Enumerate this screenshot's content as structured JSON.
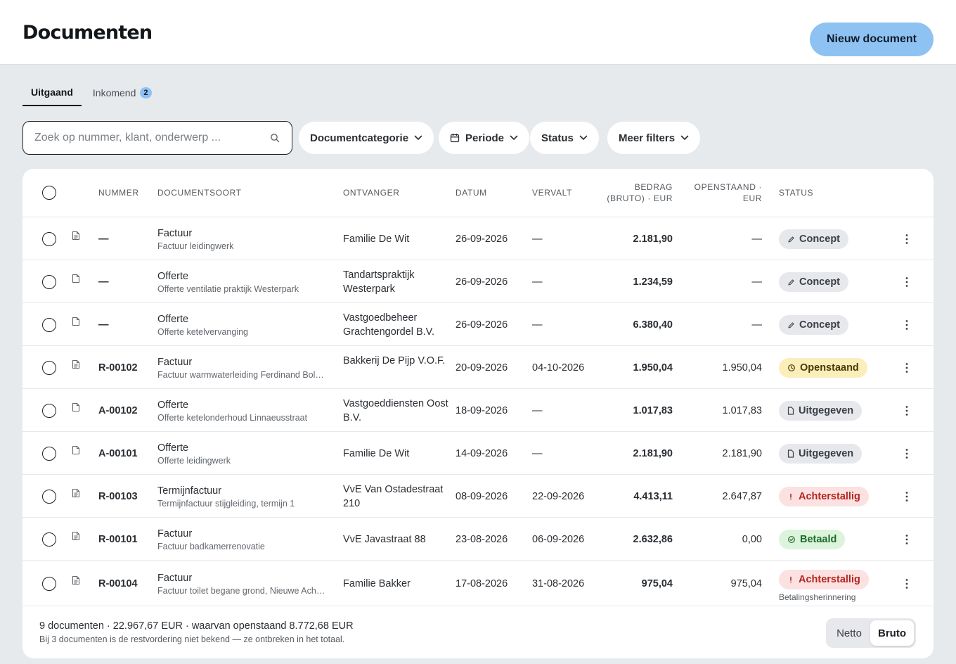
{
  "header": {
    "title": "Documenten",
    "new_button": "Nieuw document"
  },
  "tabs": [
    {
      "label": "Uitgaand",
      "active": true
    },
    {
      "label": "Inkomend",
      "badge": "2",
      "active": false
    }
  ],
  "search": {
    "placeholder": "Zoek op nummer, klant, onderwerp ..."
  },
  "filters": [
    "Documentcategorie",
    "Periode",
    "Status",
    "Meer filters"
  ],
  "columns": {
    "number": "Nummer",
    "doctype": "Documentsoort",
    "recipient": "Ontvanger",
    "date": "Datum",
    "due": "Vervalt",
    "amount_line1": "Bedrag",
    "amount_line2": "(bruto) · EUR",
    "open_line1": "Openstaand ·",
    "open_line2": "EUR",
    "status": "Status"
  },
  "rows": [
    {
      "number": "—",
      "type": "Factuur",
      "subtitle": "Factuur leidingwerk",
      "recipient": "Familie De Wit",
      "date": "26-09-2026",
      "due": "—",
      "amount": "2.181,90",
      "open": "—",
      "status": "Concept",
      "status_kind": "concept",
      "status_icon": "pencil-icon",
      "doc_icon": "invoice-icon"
    },
    {
      "number": "—",
      "type": "Offerte",
      "subtitle": "Offerte ventilatie praktijk Westerpark",
      "recipient": "Tandartspraktijk Westerpark",
      "date": "26-09-2026",
      "due": "—",
      "amount": "1.234,59",
      "open": "—",
      "status": "Concept",
      "status_kind": "concept",
      "status_icon": "pencil-icon",
      "doc_icon": "quote-icon"
    },
    {
      "number": "—",
      "type": "Offerte",
      "subtitle": "Offerte ketelvervanging",
      "recipient": "Vastgoedbeheer Grachtengordel B.V.",
      "date": "26-09-2026",
      "due": "—",
      "amount": "6.380,40",
      "open": "—",
      "status": "Concept",
      "status_kind": "concept",
      "status_icon": "pencil-icon",
      "doc_icon": "quote-icon"
    },
    {
      "number": "R-00102",
      "type": "Factuur",
      "subtitle": "Factuur warmwaterleiding Ferdinand Bol…",
      "recipient": "Bakkerij De Pijp V.O.F.",
      "date": "20-09-2026",
      "due": "04-10-2026",
      "amount": "1.950,04",
      "open": "1.950,04",
      "status": "Openstaand",
      "status_kind": "open",
      "status_icon": "clock-icon",
      "doc_icon": "invoice-icon"
    },
    {
      "number": "A-00102",
      "type": "Offerte",
      "subtitle": "Offerte ketelonderhoud Linnaeusstraat",
      "recipient": "Vastgoeddiensten Oost B.V.",
      "date": "18-09-2026",
      "due": "—",
      "amount": "1.017,83",
      "open": "1.017,83",
      "status": "Uitgegeven",
      "status_kind": "issued",
      "status_icon": "document-icon",
      "doc_icon": "quote-icon"
    },
    {
      "number": "A-00101",
      "type": "Offerte",
      "subtitle": "Offerte leidingwerk",
      "recipient": "Familie De Wit",
      "date": "14-09-2026",
      "due": "—",
      "amount": "2.181,90",
      "open": "2.181,90",
      "status": "Uitgegeven",
      "status_kind": "issued",
      "status_icon": "document-icon",
      "doc_icon": "quote-icon"
    },
    {
      "number": "R-00103",
      "type": "Termijnfactuur",
      "subtitle": "Termijnfactuur stijgleiding, termijn 1",
      "recipient": "VvE Van Ostadestraat 210",
      "date": "08-09-2026",
      "due": "22-09-2026",
      "amount": "4.413,11",
      "open": "2.647,87",
      "status": "Achterstallig",
      "status_kind": "late",
      "status_icon": "alert-icon",
      "doc_icon": "invoice-icon"
    },
    {
      "number": "R-00101",
      "type": "Factuur",
      "subtitle": "Factuur badkamerrenovatie",
      "recipient": "VvE Javastraat 88",
      "date": "23-08-2026",
      "due": "06-09-2026",
      "amount": "2.632,86",
      "open": "0,00",
      "status": "Betaald",
      "status_kind": "paid",
      "status_icon": "check-circle-icon",
      "doc_icon": "invoice-icon"
    },
    {
      "number": "R-00104",
      "type": "Factuur",
      "subtitle": "Factuur toilet begane grond, Nieuwe Ach…",
      "recipient": "Familie Bakker",
      "date": "17-08-2026",
      "due": "31-08-2026",
      "amount": "975,04",
      "open": "975,04",
      "status": "Achterstallig",
      "status_kind": "late",
      "status_icon": "alert-icon",
      "status_note": "Betalingsherinnering",
      "doc_icon": "invoice-icon"
    }
  ],
  "footer": {
    "summary": "9 documenten · 22.967,67 EUR · waarvan openstaand 8.772,68 EUR",
    "note": "Bij 3 documenten is de restvordering niet bekend — ze ontbreken in het totaal.",
    "toggle_net": "Netto",
    "toggle_gross": "Bruto",
    "toggle_selected": "Bruto"
  },
  "colors": {
    "accent": "#8ec2f2",
    "background": "#e7eaed",
    "late": "#b3261e",
    "paid": "#1e6b2a",
    "open": "#fbeebb"
  }
}
